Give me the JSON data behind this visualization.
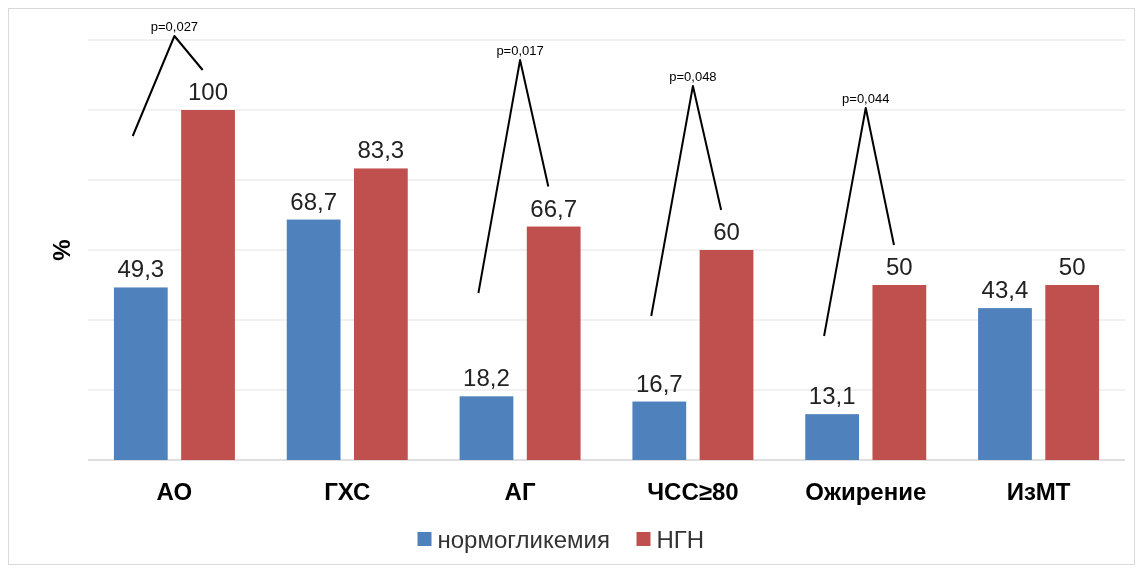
{
  "chart_data": {
    "type": "bar",
    "ylabel": "%",
    "categories": [
      "АО",
      "ГХС",
      "АГ",
      "ЧСС≥80",
      "Ожирение",
      "ИзМТ"
    ],
    "series": [
      {
        "name": "нормогликемия",
        "color": "#4f81bd",
        "values": [
          49.3,
          68.7,
          18.2,
          16.7,
          13.1,
          43.4
        ],
        "value_labels": [
          "49,3",
          "68,7",
          "18,2",
          "16,7",
          "13,1",
          "43,4"
        ]
      },
      {
        "name": "НГН",
        "color": "#c0504d",
        "values": [
          100,
          83.3,
          66.7,
          60,
          50,
          50
        ],
        "value_labels": [
          "100",
          "83,3",
          "66,7",
          "60",
          "50",
          "50"
        ]
      }
    ],
    "ylim": [
      0,
      120
    ],
    "yticks": [
      {
        "value": 0,
        "label": null
      },
      {
        "value": 20,
        "label": null
      },
      {
        "value": 40,
        "label": null
      },
      {
        "value": 60,
        "label": null
      },
      {
        "value": 80,
        "label": null
      },
      {
        "value": 100,
        "label": null
      },
      {
        "value": 120,
        "label": null
      }
    ],
    "grid": "y",
    "legend": "bottom",
    "annotations": [
      "p=0,027",
      "p=0,017",
      "p=0,048",
      "p=0,044"
    ]
  }
}
